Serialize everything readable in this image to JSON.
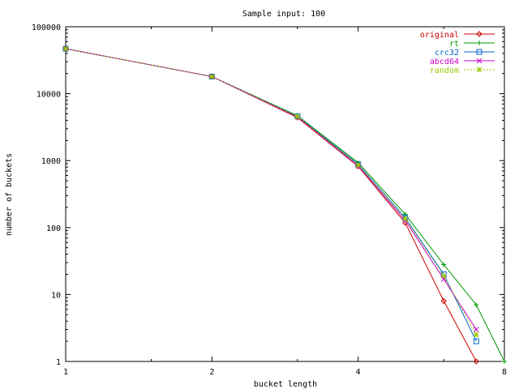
{
  "chart_data": {
    "type": "line",
    "title": "Sample input: 100",
    "xlabel": "bucket length",
    "ylabel": "number of buckets",
    "xscale": "log2",
    "yscale": "log10",
    "xlim": [
      1,
      8
    ],
    "ylim": [
      1,
      100000
    ],
    "xticks": [
      1,
      2,
      4,
      8
    ],
    "xtick_labels": [
      "1",
      "2",
      "4",
      "8"
    ],
    "yticks": [
      1,
      10,
      100,
      1000,
      10000,
      100000
    ],
    "ytick_labels": [
      "1",
      "10",
      "100",
      "1000",
      "10000",
      "100000"
    ],
    "grid": false,
    "legend_position": "top-right",
    "series": [
      {
        "name": "original",
        "color": "#cc0000",
        "marker": "diamond",
        "dashed": false,
        "points": [
          [
            1,
            47000
          ],
          [
            2,
            18000
          ],
          [
            3,
            4400
          ],
          [
            4,
            820
          ],
          [
            5,
            118
          ],
          [
            6,
            8
          ],
          [
            7,
            1
          ]
        ]
      },
      {
        "name": "rt",
        "color": "#009900",
        "marker": "plus",
        "dashed": false,
        "points": [
          [
            1,
            47000
          ],
          [
            2,
            18000
          ],
          [
            3,
            4700
          ],
          [
            4,
            930
          ],
          [
            5,
            158
          ],
          [
            6,
            28
          ],
          [
            7,
            7
          ],
          [
            8,
            1
          ]
        ]
      },
      {
        "name": "crc32",
        "color": "#0066cc",
        "marker": "square",
        "dashed": false,
        "points": [
          [
            1,
            47000
          ],
          [
            2,
            18000
          ],
          [
            3,
            4600
          ],
          [
            4,
            880
          ],
          [
            5,
            140
          ],
          [
            6,
            20
          ],
          [
            7,
            2
          ]
        ]
      },
      {
        "name": "abcd64",
        "color": "#cc00cc",
        "marker": "cross",
        "dashed": false,
        "points": [
          [
            1,
            47000
          ],
          [
            2,
            18000
          ],
          [
            3,
            4500
          ],
          [
            4,
            840
          ],
          [
            5,
            128
          ],
          [
            6,
            17
          ],
          [
            7,
            3
          ]
        ]
      },
      {
        "name": "random",
        "color": "#99cc00",
        "marker": "star",
        "dashed": true,
        "points": [
          [
            1,
            47000
          ],
          [
            2,
            18000
          ],
          [
            3,
            4550
          ],
          [
            4,
            860
          ],
          [
            5,
            135
          ],
          [
            6,
            19
          ],
          [
            7,
            2.5
          ]
        ]
      }
    ]
  }
}
